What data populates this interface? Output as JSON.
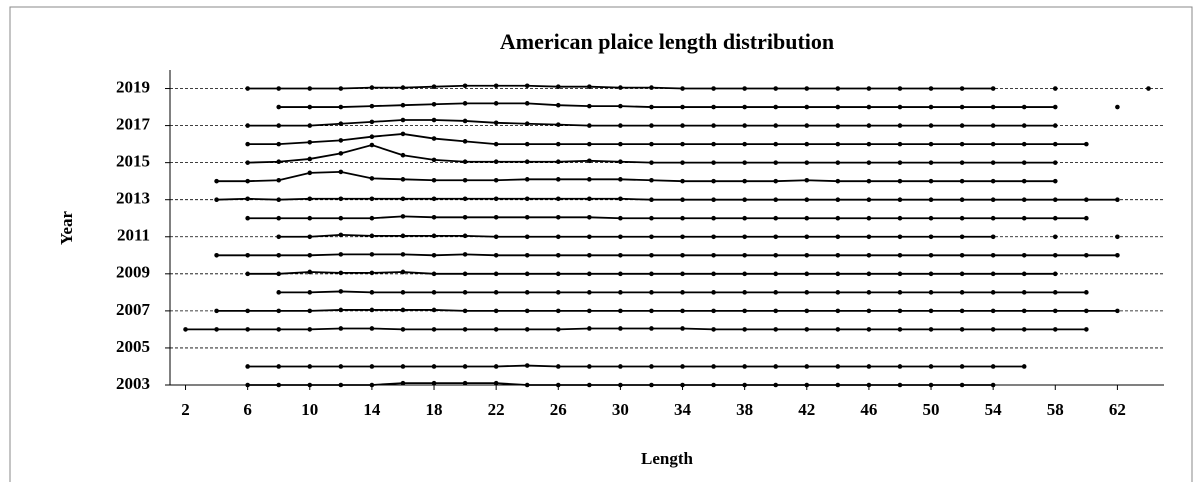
{
  "chart_data": {
    "type": "line",
    "title": "American plaice length distribution",
    "x_label": "Length",
    "y_label": "Year",
    "xlim": [
      1,
      65
    ],
    "xticks": [
      2,
      6,
      10,
      14,
      18,
      22,
      26,
      30,
      34,
      38,
      42,
      46,
      50,
      54,
      58,
      62
    ],
    "ylim": [
      2003,
      2020
    ],
    "yticks": [
      2003,
      2005,
      2007,
      2009,
      2011,
      2013,
      2015,
      2017,
      2019
    ],
    "grid": true,
    "x": [
      2,
      4,
      6,
      8,
      10,
      12,
      14,
      16,
      18,
      20,
      22,
      24,
      26,
      28,
      30,
      32,
      34,
      36,
      38,
      40,
      42,
      44,
      46,
      48,
      50,
      52,
      54,
      56,
      58,
      60,
      62,
      64
    ],
    "series": [
      {
        "color": "#000000",
        "values": [
          null,
          null,
          2019,
          2019,
          2019,
          2019,
          2019.05,
          2019.05,
          2019.1,
          2019.15,
          2019.15,
          2019.15,
          2019.1,
          2019.1,
          2019.05,
          2019.05,
          2019,
          2019,
          2019,
          2019,
          2019,
          2019,
          2019,
          2019,
          2019,
          2019,
          2019,
          null,
          2019,
          null,
          null,
          2019
        ]
      },
      {
        "color": "#000000",
        "values": [
          null,
          null,
          null,
          2018,
          2018,
          2018,
          2018.05,
          2018.1,
          2018.15,
          2018.2,
          2018.2,
          2018.2,
          2018.1,
          2018.05,
          2018.05,
          2018,
          2018,
          2018,
          2018,
          2018,
          2018,
          2018,
          2018,
          2018,
          2018,
          2018,
          2018,
          2018,
          2018,
          null,
          2018,
          null
        ]
      },
      {
        "color": "#000000",
        "values": [
          null,
          null,
          2017,
          2017,
          2017,
          2017.1,
          2017.2,
          2017.3,
          2017.3,
          2017.25,
          2017.15,
          2017.1,
          2017.05,
          2017,
          2017,
          2017,
          2017,
          2017,
          2017,
          2017,
          2017,
          2017,
          2017,
          2017,
          2017,
          2017,
          2017,
          2017,
          2017,
          null,
          null,
          null
        ]
      },
      {
        "color": "#000000",
        "values": [
          null,
          null,
          2016,
          2016,
          2016.1,
          2016.2,
          2016.4,
          2016.55,
          2016.3,
          2016.15,
          2016,
          2016,
          2016,
          2016,
          2016,
          2016,
          2016,
          2016,
          2016,
          2016,
          2016,
          2016,
          2016,
          2016,
          2016,
          2016,
          2016,
          2016,
          2016,
          2016,
          null,
          null
        ]
      },
      {
        "color": "#000000",
        "values": [
          null,
          null,
          2015,
          2015.05,
          2015.2,
          2015.5,
          2015.95,
          2015.4,
          2015.15,
          2015.05,
          2015.05,
          2015.05,
          2015.05,
          2015.1,
          2015.05,
          2015,
          2015,
          2015,
          2015,
          2015,
          2015,
          2015,
          2015,
          2015,
          2015,
          2015,
          2015,
          2015,
          2015,
          null,
          null,
          null
        ]
      },
      {
        "color": "#000000",
        "values": [
          null,
          2014,
          2014,
          2014.05,
          2014.45,
          2014.5,
          2014.15,
          2014.1,
          2014.05,
          2014.05,
          2014.05,
          2014.1,
          2014.1,
          2014.1,
          2014.1,
          2014.05,
          2014,
          2014,
          2014,
          2014,
          2014.05,
          2014,
          2014,
          2014,
          2014,
          2014,
          2014,
          2014,
          2014,
          null,
          null,
          null
        ]
      },
      {
        "color": "#000000",
        "values": [
          null,
          2013,
          2013.05,
          2013,
          2013.05,
          2013.05,
          2013.05,
          2013.05,
          2013.05,
          2013.05,
          2013.05,
          2013.05,
          2013.05,
          2013.05,
          2013.05,
          2013,
          2013,
          2013,
          2013,
          2013,
          2013,
          2013,
          2013,
          2013,
          2013,
          2013,
          2013,
          2013,
          2013,
          2013,
          2013,
          null
        ]
      },
      {
        "color": "#000000",
        "values": [
          null,
          null,
          2012,
          2012,
          2012,
          2012,
          2012,
          2012.1,
          2012.05,
          2012.05,
          2012.05,
          2012.05,
          2012.05,
          2012.05,
          2012,
          2012,
          2012,
          2012,
          2012,
          2012,
          2012,
          2012,
          2012,
          2012,
          2012,
          2012,
          2012,
          2012,
          2012,
          2012,
          null,
          null
        ]
      },
      {
        "color": "#000000",
        "values": [
          null,
          null,
          null,
          2011,
          2011,
          2011.1,
          2011.05,
          2011.05,
          2011.05,
          2011.05,
          2011,
          2011,
          2011,
          2011,
          2011,
          2011,
          2011,
          2011,
          2011,
          2011,
          2011,
          2011,
          2011,
          2011,
          2011,
          2011,
          2011,
          null,
          2011,
          null,
          2011,
          null
        ]
      },
      {
        "color": "#000000",
        "values": [
          null,
          2010,
          2010,
          2010,
          2010,
          2010.05,
          2010.05,
          2010.05,
          2010,
          2010.05,
          2010,
          2010,
          2010,
          2010,
          2010,
          2010,
          2010,
          2010,
          2010,
          2010,
          2010,
          2010,
          2010,
          2010,
          2010,
          2010,
          2010,
          2010,
          2010,
          2010,
          2010,
          null
        ]
      },
      {
        "color": "#000000",
        "values": [
          null,
          null,
          2009,
          2009,
          2009.1,
          2009.05,
          2009.05,
          2009.1,
          2009,
          2009,
          2009,
          2009,
          2009,
          2009,
          2009,
          2009,
          2009,
          2009,
          2009,
          2009,
          2009,
          2009,
          2009,
          2009,
          2009,
          2009,
          2009,
          2009,
          2009,
          null,
          null,
          null
        ]
      },
      {
        "color": "#000000",
        "values": [
          null,
          null,
          null,
          2008,
          2008,
          2008.05,
          2008,
          2008,
          2008,
          2008,
          2008,
          2008,
          2008,
          2008,
          2008,
          2008,
          2008,
          2008,
          2008,
          2008,
          2008,
          2008,
          2008,
          2008,
          2008,
          2008,
          2008,
          2008,
          2008,
          2008,
          null,
          null
        ]
      },
      {
        "color": "#000000",
        "values": [
          null,
          2007,
          2007,
          2007,
          2007,
          2007.05,
          2007.05,
          2007.05,
          2007.05,
          2007,
          2007,
          2007,
          2007,
          2007,
          2007,
          2007,
          2007,
          2007,
          2007,
          2007,
          2007,
          2007,
          2007,
          2007,
          2007,
          2007,
          2007,
          2007,
          2007,
          2007,
          2007,
          null
        ]
      },
      {
        "color": "#000000",
        "values": [
          2006,
          2006,
          2006,
          2006,
          2006,
          2006.05,
          2006.05,
          2006,
          2006,
          2006,
          2006,
          2006,
          2006,
          2006.05,
          2006.05,
          2006.05,
          2006.05,
          2006,
          2006,
          2006,
          2006,
          2006,
          2006,
          2006,
          2006,
          2006,
          2006,
          2006,
          2006,
          2006,
          null,
          null
        ]
      },
      {
        "color": "#000000",
        "values": [
          null,
          null,
          2004,
          2004,
          2004,
          2004,
          2004,
          2004,
          2004,
          2004,
          2004,
          2004.05,
          2004,
          2004,
          2004,
          2004,
          2004,
          2004,
          2004,
          2004,
          2004,
          2004,
          2004,
          2004,
          2004,
          2004,
          2004,
          2004,
          null,
          null,
          null,
          null
        ]
      },
      {
        "color": "#000000",
        "values": [
          null,
          null,
          2003,
          2003,
          2003,
          2003,
          2003,
          2003.1,
          2003.1,
          2003.1,
          2003.1,
          2003,
          2003,
          2003,
          2003,
          2003,
          2003,
          2003,
          2003,
          2003,
          2003,
          2003,
          2003,
          2003,
          2003,
          2003,
          2003,
          null,
          null,
          null,
          null,
          null
        ]
      }
    ]
  }
}
